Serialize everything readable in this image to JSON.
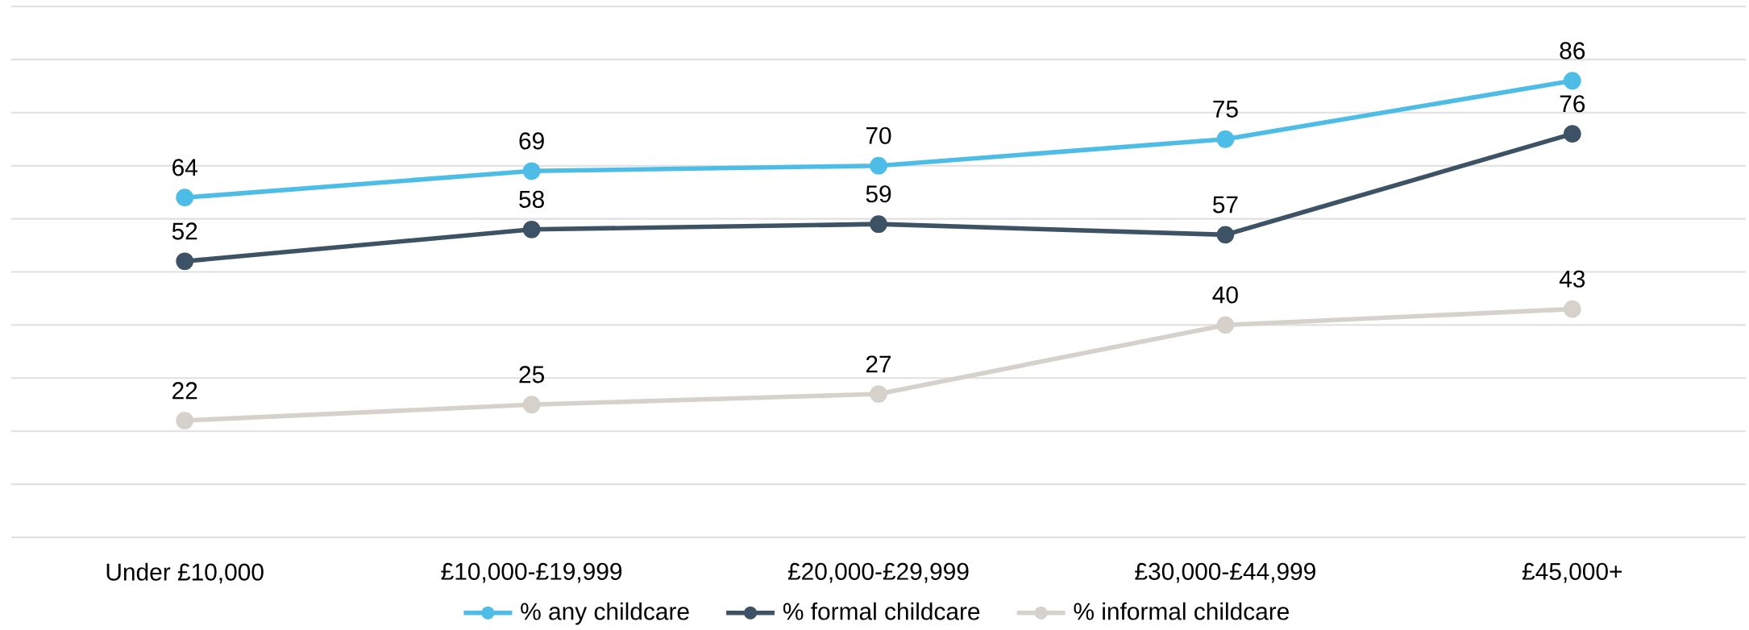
{
  "chart_data": {
    "type": "line",
    "categories": [
      "Under £10,000",
      "£10,000-£19,999",
      "£20,000-£29,999",
      "£30,000-£44,999",
      "£45,000+"
    ],
    "series": [
      {
        "name": "% any childcare",
        "color": "#4dbde8",
        "values": [
          64,
          69,
          70,
          75,
          86
        ]
      },
      {
        "name": "% formal childcare",
        "color": "#3e5265",
        "values": [
          52,
          58,
          59,
          57,
          76
        ]
      },
      {
        "name": "% informal childcare",
        "color": "#d6d1cb",
        "values": [
          22,
          25,
          27,
          40,
          43
        ]
      }
    ],
    "ylim": [
      0,
      100
    ],
    "yticks": [
      {
        "value": 0,
        "label": null
      },
      {
        "value": 10,
        "label": null
      },
      {
        "value": 20,
        "label": null
      },
      {
        "value": 30,
        "label": null
      },
      {
        "value": 40,
        "label": null
      },
      {
        "value": 50,
        "label": null
      },
      {
        "value": 60,
        "label": null
      },
      {
        "value": 70,
        "label": null
      },
      {
        "value": 80,
        "label": null
      },
      {
        "value": 90,
        "label": null
      },
      {
        "value": 100,
        "label": null
      }
    ],
    "tick_labels": "x",
    "grid": "y",
    "data_labels": true,
    "legend": "bottom",
    "marker": "circle",
    "line_style": "solid"
  }
}
